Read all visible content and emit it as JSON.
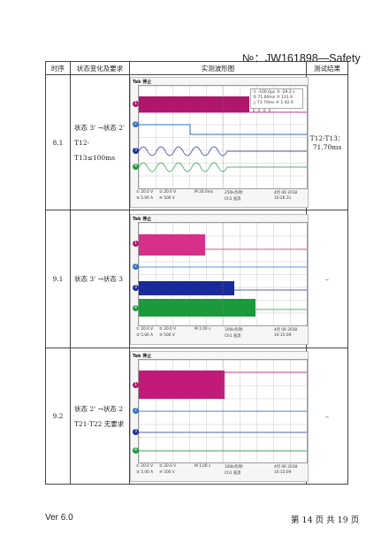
{
  "doc_number": "№：JW161898—Safety",
  "headers": {
    "seq": "时序",
    "requirement": "状态变化及要求",
    "waveform": "实测波形图",
    "result": "测试结果"
  },
  "rows": [
    {
      "seq": "8.1",
      "req_line1": "状态 3' →状态 2'",
      "req_line2": "T12-T13≤100ms",
      "result_line1": "T12-T13：",
      "result_line2": "71.70ms",
      "scope": {
        "brand": "Tek 停止",
        "measure": [
          "①  -100.0μs   ②  -29.2 s",
          "②  71.60ms    ③  131.9",
          "△  71.70ms    ④  1.42.0"
        ],
        "status_top": [
          "① 20.0 V",
          "② 20.0 V",
          "③ 5.00 A",
          "④ 500 V",
          "M 20.0ms",
          "250k点/秒",
          "4月 06 2018"
        ],
        "status_bottom": [
          "",
          "",
          "",
          "",
          "",
          "Ch1 直流",
          "10:26:31"
        ]
      }
    },
    {
      "seq": "9.1",
      "req_line1": "状态 3' →状态 3",
      "req_line2": "",
      "result_line1": "–",
      "result_line2": "",
      "scope": {
        "brand": "Tek 停止",
        "measure": [],
        "status_top": [
          "① 20.0 V",
          "② 20.0 V",
          "③ 5.00 A",
          "④ 500 V",
          "M 1.00 s",
          "100k点/秒",
          "4月 06 2018"
        ],
        "status_bottom": [
          "",
          "",
          "",
          "",
          "",
          "Ch1 直流",
          "10:15:09"
        ]
      }
    },
    {
      "seq": "9.2",
      "req_line1": "状态 2' →状态 2",
      "req_line2": "T21-T22 无要求",
      "result_line1": "–",
      "result_line2": "",
      "scope": {
        "brand": "Tek 停止",
        "measure": [],
        "status_top": [
          "① 20.0 V",
          "② 20.0 V",
          "③ 5.00 A",
          "④ 500 V",
          "M 1.00 s",
          "100k点/秒",
          "4月 06 2018"
        ],
        "status_bottom": [
          "",
          "",
          "",
          "",
          "",
          "Ch1 直流",
          "10:15:09"
        ]
      }
    }
  ],
  "footer": {
    "version": "Ver 6.0",
    "page": "第 14 页 共 19 页"
  },
  "colors": {
    "ch1": "#b0166b",
    "ch2": "#2a70c8",
    "ch3": "#1a2a9a",
    "ch4": "#1a9a3a",
    "border": "#444444"
  }
}
